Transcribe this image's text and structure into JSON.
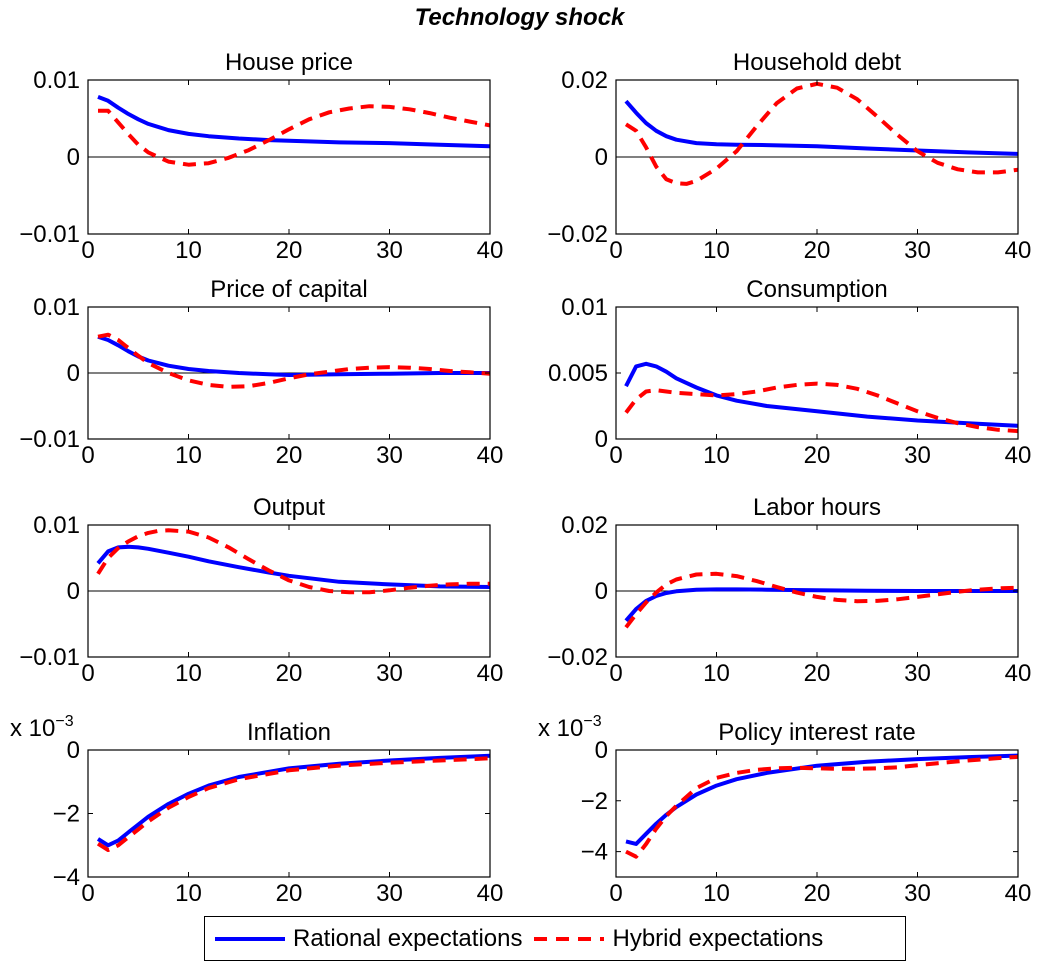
{
  "figure": {
    "title": "Technology shock",
    "legend": {
      "placement": "bottom-center",
      "entries": [
        {
          "label": "Rational expectations",
          "color": "#0000ff",
          "style": "solid"
        },
        {
          "label": "Hybrid expectations",
          "color": "#ff0000",
          "style": "dashed"
        }
      ]
    },
    "colors": {
      "rational": "#0000ff",
      "hybrid": "#ff0000",
      "zero_line": "#000000"
    }
  },
  "chart_data": [
    {
      "type": "line",
      "title": "House price",
      "xlim": [
        0,
        40
      ],
      "ylim": [
        -0.01,
        0.01
      ],
      "xticks": [
        0,
        10,
        20,
        30,
        40
      ],
      "yticks": [
        -0.01,
        0,
        0.01
      ],
      "ytick_labels": [
        "−0.01",
        "0",
        "0.01"
      ],
      "zero_line": true,
      "exponent_label": "",
      "series": [
        {
          "name": "Rational expectations",
          "x": [
            1,
            2,
            3,
            4,
            5,
            6,
            8,
            10,
            12,
            15,
            18,
            20,
            25,
            30,
            35,
            40
          ],
          "y": [
            0.0078,
            0.0073,
            0.0064,
            0.0056,
            0.0049,
            0.0043,
            0.0035,
            0.003,
            0.0027,
            0.0024,
            0.0022,
            0.0021,
            0.0019,
            0.0018,
            0.0016,
            0.0014
          ]
        },
        {
          "name": "Hybrid expectations",
          "x": [
            1,
            2,
            3,
            4,
            5,
            6,
            8,
            10,
            12,
            14,
            16,
            18,
            20,
            22,
            24,
            26,
            28,
            30,
            32,
            34,
            36,
            38,
            40
          ],
          "y": [
            0.006,
            0.006,
            0.0045,
            0.003,
            0.0016,
            0.0006,
            -0.0006,
            -0.001,
            -0.0008,
            -0.0001,
            0.0009,
            0.0022,
            0.0036,
            0.0049,
            0.0058,
            0.0063,
            0.0066,
            0.0065,
            0.0062,
            0.0057,
            0.0051,
            0.0046,
            0.0041
          ]
        }
      ]
    },
    {
      "type": "line",
      "title": "Household debt",
      "xlim": [
        0,
        40
      ],
      "ylim": [
        -0.02,
        0.02
      ],
      "xticks": [
        0,
        10,
        20,
        30,
        40
      ],
      "yticks": [
        -0.02,
        0,
        0.02
      ],
      "ytick_labels": [
        "−0.02",
        "0",
        "0.02"
      ],
      "zero_line": true,
      "exponent_label": "",
      "series": [
        {
          "name": "Rational expectations",
          "x": [
            1,
            2,
            3,
            4,
            5,
            6,
            8,
            10,
            12,
            15,
            20,
            25,
            30,
            35,
            40
          ],
          "y": [
            0.0145,
            0.0115,
            0.0088,
            0.0068,
            0.0054,
            0.0045,
            0.0036,
            0.0033,
            0.0032,
            0.0031,
            0.0028,
            0.0022,
            0.0017,
            0.0012,
            0.0008
          ]
        },
        {
          "name": "Hybrid expectations",
          "x": [
            1,
            2,
            3,
            4,
            5,
            6,
            7,
            8,
            10,
            12,
            14,
            16,
            18,
            20,
            22,
            24,
            26,
            28,
            30,
            32,
            34,
            36,
            38,
            40
          ],
          "y": [
            0.0085,
            0.0068,
            0.0025,
            -0.0025,
            -0.0058,
            -0.0068,
            -0.007,
            -0.0062,
            -0.003,
            0.0015,
            0.008,
            0.014,
            0.0178,
            0.019,
            0.018,
            0.015,
            0.0105,
            0.0058,
            0.0015,
            -0.0015,
            -0.0032,
            -0.004,
            -0.004,
            -0.0033
          ]
        }
      ]
    },
    {
      "type": "line",
      "title": "Price of capital",
      "xlim": [
        0,
        40
      ],
      "ylim": [
        -0.01,
        0.01
      ],
      "xticks": [
        0,
        10,
        20,
        30,
        40
      ],
      "yticks": [
        -0.01,
        0,
        0.01
      ],
      "ytick_labels": [
        "−0.01",
        "0",
        "0.01"
      ],
      "zero_line": true,
      "exponent_label": "",
      "series": [
        {
          "name": "Rational expectations",
          "x": [
            1,
            2,
            3,
            4,
            5,
            6,
            7,
            8,
            10,
            12,
            15,
            18,
            20,
            25,
            30,
            35,
            40
          ],
          "y": [
            0.0055,
            0.005,
            0.0042,
            0.0033,
            0.0025,
            0.0019,
            0.0015,
            0.0011,
            0.0006,
            0.0003,
            0.0,
            -0.0002,
            -0.0003,
            -0.0002,
            -0.0001,
            0.0,
            0.0
          ]
        },
        {
          "name": "Hybrid expectations",
          "x": [
            1,
            2,
            3,
            4,
            5,
            6,
            8,
            10,
            12,
            14,
            16,
            18,
            20,
            22,
            24,
            26,
            28,
            30,
            32,
            34,
            36,
            38,
            40
          ],
          "y": [
            0.0055,
            0.0058,
            0.005,
            0.0038,
            0.0026,
            0.0015,
            0.0,
            -0.0011,
            -0.0018,
            -0.0021,
            -0.002,
            -0.0015,
            -0.0008,
            -0.0002,
            0.0002,
            0.0006,
            0.0008,
            0.0009,
            0.0008,
            0.0006,
            0.0003,
            0.0001,
            -0.0001
          ]
        }
      ]
    },
    {
      "type": "line",
      "title": "Consumption",
      "xlim": [
        0,
        40
      ],
      "ylim": [
        0,
        0.01
      ],
      "xticks": [
        0,
        10,
        20,
        30,
        40
      ],
      "yticks": [
        0,
        0.005,
        0.01
      ],
      "ytick_labels": [
        "0",
        "0.005",
        "0.01"
      ],
      "zero_line": false,
      "exponent_label": "",
      "series": [
        {
          "name": "Rational expectations",
          "x": [
            1,
            2,
            3,
            4,
            5,
            6,
            8,
            10,
            12,
            15,
            20,
            25,
            30,
            35,
            40
          ],
          "y": [
            0.004,
            0.0055,
            0.0057,
            0.0055,
            0.0051,
            0.0046,
            0.0039,
            0.0033,
            0.0029,
            0.0025,
            0.0021,
            0.0017,
            0.0014,
            0.0012,
            0.001
          ]
        },
        {
          "name": "Hybrid expectations",
          "x": [
            1,
            2,
            3,
            4,
            5,
            6,
            8,
            10,
            12,
            14,
            16,
            18,
            20,
            22,
            24,
            26,
            28,
            30,
            32,
            34,
            36,
            38,
            40
          ],
          "y": [
            0.002,
            0.003,
            0.0036,
            0.0037,
            0.0036,
            0.0035,
            0.0034,
            0.0033,
            0.0034,
            0.0036,
            0.0039,
            0.0041,
            0.0042,
            0.0041,
            0.0038,
            0.0033,
            0.0027,
            0.0021,
            0.0016,
            0.0012,
            0.0009,
            0.0007,
            0.0006
          ]
        }
      ]
    },
    {
      "type": "line",
      "title": "Output",
      "xlim": [
        0,
        40
      ],
      "ylim": [
        -0.01,
        0.01
      ],
      "xticks": [
        0,
        10,
        20,
        30,
        40
      ],
      "yticks": [
        -0.01,
        0,
        0.01
      ],
      "ytick_labels": [
        "−0.01",
        "0",
        "0.01"
      ],
      "zero_line": true,
      "exponent_label": "",
      "series": [
        {
          "name": "Rational expectations",
          "x": [
            1,
            2,
            3,
            4,
            5,
            6,
            8,
            10,
            12,
            15,
            18,
            20,
            25,
            30,
            35,
            40
          ],
          "y": [
            0.0042,
            0.006,
            0.0066,
            0.0067,
            0.0066,
            0.0064,
            0.0058,
            0.0052,
            0.0045,
            0.0036,
            0.0028,
            0.0023,
            0.0014,
            0.001,
            0.0007,
            0.0006
          ]
        },
        {
          "name": "Hybrid expectations",
          "x": [
            1,
            2,
            3,
            4,
            5,
            6,
            7,
            8,
            10,
            12,
            14,
            16,
            18,
            20,
            22,
            24,
            26,
            28,
            30,
            32,
            34,
            36,
            38,
            40
          ],
          "y": [
            0.0026,
            0.005,
            0.0065,
            0.0075,
            0.0083,
            0.0088,
            0.0091,
            0.0092,
            0.009,
            0.0081,
            0.0066,
            0.0048,
            0.0031,
            0.0016,
            0.0006,
            0.0,
            -0.0002,
            -0.0002,
            0.0001,
            0.0005,
            0.0008,
            0.001,
            0.0011,
            0.0011
          ]
        }
      ]
    },
    {
      "type": "line",
      "title": "Labor hours",
      "xlim": [
        0,
        40
      ],
      "ylim": [
        -0.02,
        0.02
      ],
      "xticks": [
        0,
        10,
        20,
        30,
        40
      ],
      "yticks": [
        -0.02,
        0,
        0.02
      ],
      "ytick_labels": [
        "−0.02",
        "0",
        "0.02"
      ],
      "zero_line": true,
      "exponent_label": "",
      "series": [
        {
          "name": "Rational expectations",
          "x": [
            1,
            2,
            3,
            4,
            5,
            6,
            8,
            10,
            12,
            15,
            20,
            25,
            30,
            35,
            40
          ],
          "y": [
            -0.009,
            -0.0055,
            -0.003,
            -0.0015,
            -0.0006,
            -0.0001,
            0.0004,
            0.0005,
            0.0005,
            0.0004,
            0.0002,
            0.0001,
            0.0,
            0.0,
            0.0
          ]
        },
        {
          "name": "Hybrid expectations",
          "x": [
            1,
            2,
            3,
            4,
            5,
            6,
            8,
            10,
            12,
            14,
            16,
            18,
            20,
            22,
            24,
            26,
            28,
            30,
            32,
            34,
            36,
            38,
            40
          ],
          "y": [
            -0.011,
            -0.007,
            -0.0035,
            -0.0005,
            0.002,
            0.0035,
            0.005,
            0.0052,
            0.0045,
            0.003,
            0.0012,
            -0.0005,
            -0.0018,
            -0.0027,
            -0.0031,
            -0.003,
            -0.0025,
            -0.0018,
            -0.001,
            -0.0002,
            0.0004,
            0.0008,
            0.001
          ]
        }
      ]
    },
    {
      "type": "line",
      "title": "Inflation",
      "xlim": [
        0,
        40
      ],
      "ylim": [
        -4,
        0
      ],
      "xticks": [
        0,
        10,
        20,
        30,
        40
      ],
      "yticks": [
        -4,
        -2,
        0
      ],
      "ytick_labels": [
        "−4",
        "−2",
        "0"
      ],
      "zero_line": false,
      "exponent_label": "x 10",
      "exponent_power": "−3",
      "series": [
        {
          "name": "Rational expectations",
          "x": [
            1,
            2,
            3,
            4,
            5,
            6,
            8,
            10,
            12,
            15,
            20,
            25,
            30,
            35,
            40
          ],
          "y": [
            -2.8,
            -3.0,
            -2.85,
            -2.6,
            -2.35,
            -2.1,
            -1.7,
            -1.38,
            -1.12,
            -0.85,
            -0.58,
            -0.43,
            -0.33,
            -0.25,
            -0.18
          ]
        },
        {
          "name": "Hybrid expectations",
          "x": [
            1,
            2,
            3,
            4,
            5,
            6,
            8,
            10,
            12,
            15,
            20,
            25,
            30,
            35,
            40
          ],
          "y": [
            -2.95,
            -3.15,
            -3.0,
            -2.75,
            -2.5,
            -2.25,
            -1.82,
            -1.48,
            -1.2,
            -0.92,
            -0.64,
            -0.49,
            -0.4,
            -0.33,
            -0.26
          ]
        }
      ]
    },
    {
      "type": "line",
      "title": "Policy interest rate",
      "xlim": [
        0,
        40
      ],
      "ylim": [
        -5,
        0
      ],
      "xticks": [
        0,
        10,
        20,
        30,
        40
      ],
      "yticks": [
        -4,
        -2,
        0
      ],
      "ytick_labels": [
        "−4",
        "−2",
        "0"
      ],
      "zero_line": false,
      "exponent_label": "x 10",
      "exponent_power": "−3",
      "series": [
        {
          "name": "Rational expectations",
          "x": [
            1,
            2,
            3,
            4,
            5,
            6,
            8,
            10,
            12,
            15,
            20,
            25,
            30,
            35,
            40
          ],
          "y": [
            -3.6,
            -3.7,
            -3.3,
            -2.9,
            -2.55,
            -2.25,
            -1.75,
            -1.4,
            -1.15,
            -0.9,
            -0.62,
            -0.46,
            -0.36,
            -0.28,
            -0.22
          ]
        },
        {
          "name": "Hybrid expectations",
          "x": [
            1,
            2,
            3,
            4,
            5,
            6,
            8,
            10,
            12,
            14,
            16,
            18,
            20,
            22,
            24,
            26,
            28,
            30,
            32,
            34,
            36,
            38,
            40
          ],
          "y": [
            -4.0,
            -4.2,
            -3.7,
            -3.1,
            -2.6,
            -2.2,
            -1.5,
            -1.1,
            -0.9,
            -0.78,
            -0.72,
            -0.7,
            -0.72,
            -0.74,
            -0.74,
            -0.72,
            -0.68,
            -0.6,
            -0.52,
            -0.45,
            -0.38,
            -0.32,
            -0.27
          ]
        }
      ]
    }
  ]
}
